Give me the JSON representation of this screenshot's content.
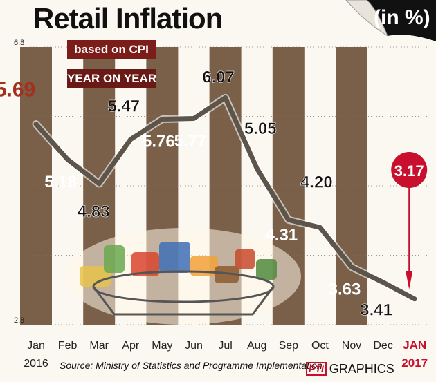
{
  "title": "Retail Inflation",
  "unit_label": "(in %)",
  "ribbons": [
    "based on CPI",
    "YEAR ON YEAR"
  ],
  "source": "Source: Ministry of Statistics and Programme Implementation",
  "brand": {
    "pti": "PTI",
    "graphics": "GRAPHICS"
  },
  "colors": {
    "bar": "#7a6048",
    "line": "#5e554a",
    "highlight": "#c8102e",
    "ribbon": "#7b1d18"
  },
  "chart_data": {
    "type": "line",
    "title": "Retail Inflation",
    "ylim": [
      2.8,
      6.8
    ],
    "y_ticks": [
      2.8,
      6.8
    ],
    "grid": true,
    "categories": [
      "Jan",
      "Feb",
      "Mar",
      "Apr",
      "May",
      "Jun",
      "Jul",
      "Aug",
      "Sep",
      "Oct",
      "Nov",
      "Dec",
      "JAN"
    ],
    "year_labels": {
      "start": "2016",
      "end": "2017"
    },
    "values": [
      5.69,
      5.18,
      4.83,
      5.47,
      5.76,
      5.77,
      6.07,
      5.05,
      4.31,
      4.2,
      3.63,
      3.41,
      3.17
    ],
    "value_labels": [
      "5.69",
      "5.18",
      "4.83",
      "5.47",
      "5.76",
      "5.77",
      "6.07",
      "5.05",
      "4.31",
      "4.20",
      "3.63",
      "3.41",
      "3.17"
    ],
    "highlight_index": 12
  }
}
